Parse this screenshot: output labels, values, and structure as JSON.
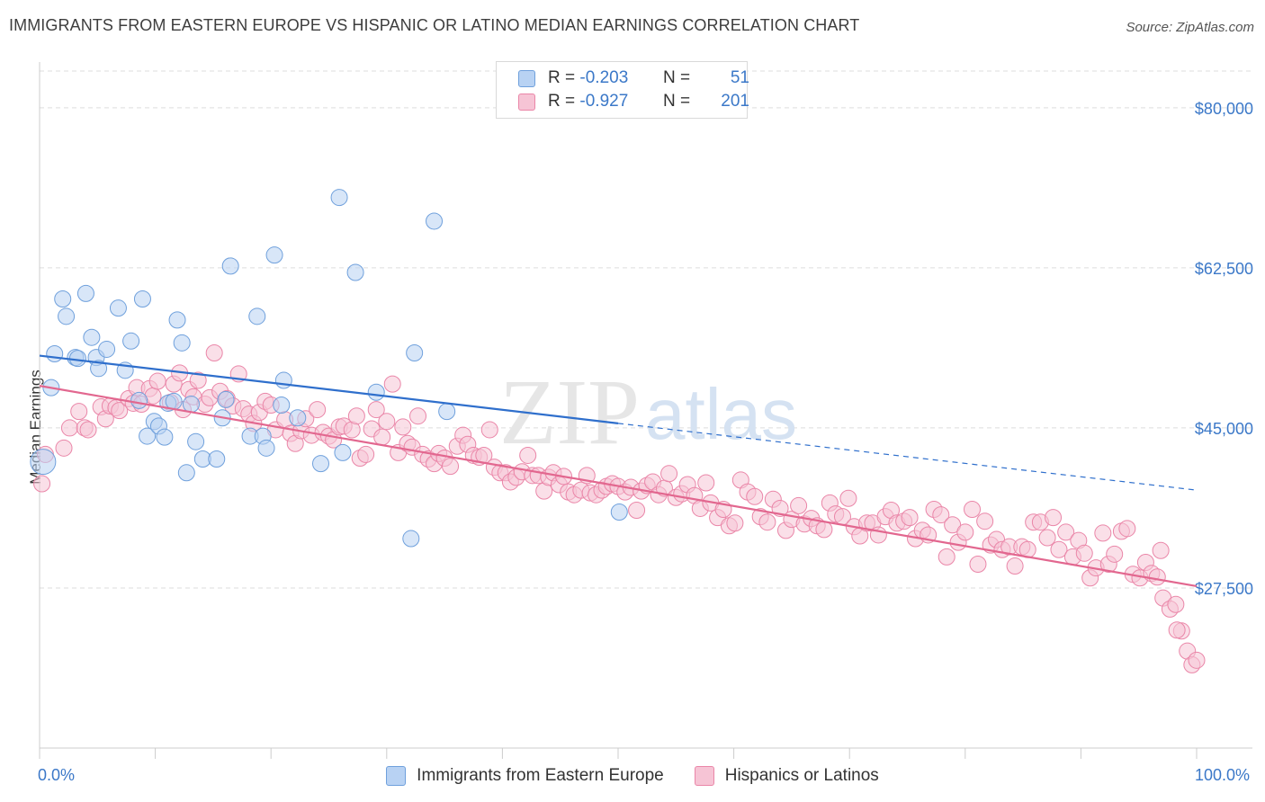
{
  "title": "IMMIGRANTS FROM EASTERN EUROPE VS HISPANIC OR LATINO MEDIAN EARNINGS CORRELATION CHART",
  "source": "Source: ZipAtlas.com",
  "watermark": {
    "zip": "ZIP",
    "atlas": "atlas"
  },
  "legend_top": [
    {
      "r_label": "R =",
      "r_value": "-0.203",
      "n_label": "N =",
      "n_value": "51"
    },
    {
      "r_label": "R =",
      "r_value": "-0.927",
      "n_label": "N =",
      "n_value": "201"
    }
  ],
  "colors": {
    "blue": "#6fa0dc",
    "blue_fill": "#b8d2f3",
    "blue_line": "#2f6fcc",
    "pink": "#ea86a8",
    "pink_fill": "#f6c4d5",
    "pink_line": "#e2678f",
    "axis_text": "#3b78c8",
    "grid": "#dddddd"
  },
  "chart_data": {
    "type": "scatter",
    "title": "IMMIGRANTS FROM EASTERN EUROPE VS HISPANIC OR LATINO MEDIAN EARNINGS CORRELATION CHART",
    "xlabel": "",
    "ylabel": "Median Earnings",
    "xlim": [
      0,
      100
    ],
    "ylim": [
      10000,
      85000
    ],
    "x_tick_labels": [
      "0.0%",
      "100.0%"
    ],
    "y_ticks": [
      80000,
      62500,
      45000,
      27500
    ],
    "y_tick_labels": [
      "$80,000",
      "$62,500",
      "$45,000",
      "$27,500"
    ],
    "series": [
      {
        "name": "Immigrants from Eastern Europe",
        "color": "#6fa0dc",
        "trend": {
          "x0": 0,
          "y0": 52900,
          "x1": 50,
          "y1": 45500,
          "dash_x1": 100,
          "dash_y1": 38200
        },
        "points": [
          [
            0.3,
            41300
          ],
          [
            1,
            49400
          ],
          [
            1.3,
            53100
          ],
          [
            2,
            59100
          ],
          [
            2.3,
            57200
          ],
          [
            3.1,
            52700
          ],
          [
            4,
            59700
          ],
          [
            4.5,
            54900
          ],
          [
            4.9,
            52700
          ],
          [
            5.1,
            51500
          ],
          [
            5.8,
            53600
          ],
          [
            6.8,
            58100
          ],
          [
            7.4,
            51300
          ],
          [
            7.9,
            54500
          ],
          [
            8.6,
            48000
          ],
          [
            8.9,
            59100
          ],
          [
            9.3,
            44100
          ],
          [
            9.9,
            45700
          ],
          [
            10.3,
            45200
          ],
          [
            11.1,
            47700
          ],
          [
            11.6,
            47900
          ],
          [
            11.9,
            56800
          ],
          [
            12.3,
            54300
          ],
          [
            12.7,
            40100
          ],
          [
            13.1,
            47600
          ],
          [
            13.5,
            43500
          ],
          [
            14.1,
            41600
          ],
          [
            15.3,
            41600
          ],
          [
            15.8,
            46100
          ],
          [
            16.1,
            48100
          ],
          [
            16.5,
            62700
          ],
          [
            18.2,
            44100
          ],
          [
            18.8,
            57200
          ],
          [
            19.3,
            44100
          ],
          [
            19.6,
            42800
          ],
          [
            20.3,
            63900
          ],
          [
            20.9,
            47500
          ],
          [
            21.1,
            50200
          ],
          [
            22.3,
            46100
          ],
          [
            24.3,
            41100
          ],
          [
            25.9,
            70200
          ],
          [
            26.2,
            42300
          ],
          [
            27.3,
            62000
          ],
          [
            29.1,
            48900
          ],
          [
            32.1,
            32900
          ],
          [
            32.4,
            53200
          ],
          [
            34.1,
            67600
          ],
          [
            35.2,
            46800
          ],
          [
            50.1,
            35800
          ],
          [
            3.3,
            52600
          ],
          [
            10.8,
            44000
          ]
        ]
      },
      {
        "name": "Hispanics or Latinos",
        "color": "#ea86a8",
        "trend": {
          "x0": 0,
          "y0": 49600,
          "x1": 100,
          "y1": 27700
        },
        "points": [
          [
            0.2,
            38900
          ],
          [
            0.5,
            42100
          ],
          [
            2.1,
            42800
          ],
          [
            2.6,
            45000
          ],
          [
            3.4,
            46800
          ],
          [
            3.9,
            45000
          ],
          [
            4.2,
            44800
          ],
          [
            5.3,
            47300
          ],
          [
            5.7,
            46000
          ],
          [
            6.1,
            47400
          ],
          [
            6.6,
            47200
          ],
          [
            6.9,
            46900
          ],
          [
            7.7,
            48200
          ],
          [
            8.1,
            47700
          ],
          [
            8.4,
            49400
          ],
          [
            8.8,
            47600
          ],
          [
            9.5,
            49300
          ],
          [
            9.8,
            48500
          ],
          [
            10.2,
            50100
          ],
          [
            11.3,
            47800
          ],
          [
            11.6,
            49800
          ],
          [
            12.1,
            51000
          ],
          [
            12.4,
            47000
          ],
          [
            12.9,
            49200
          ],
          [
            13.3,
            48400
          ],
          [
            13.7,
            50200
          ],
          [
            14.3,
            47600
          ],
          [
            14.7,
            48300
          ],
          [
            15.1,
            53200
          ],
          [
            15.6,
            49000
          ],
          [
            16.2,
            48200
          ],
          [
            16.7,
            47400
          ],
          [
            17.2,
            50900
          ],
          [
            17.6,
            47100
          ],
          [
            18.1,
            46500
          ],
          [
            18.5,
            45500
          ],
          [
            19.0,
            46700
          ],
          [
            19.5,
            47900
          ],
          [
            20.0,
            47500
          ],
          [
            20.4,
            44800
          ],
          [
            21.2,
            45900
          ],
          [
            21.7,
            44400
          ],
          [
            22.1,
            43300
          ],
          [
            22.6,
            44700
          ],
          [
            23.0,
            46000
          ],
          [
            23.5,
            44200
          ],
          [
            24.0,
            47000
          ],
          [
            24.5,
            44500
          ],
          [
            25.0,
            44100
          ],
          [
            25.4,
            43700
          ],
          [
            25.9,
            45100
          ],
          [
            26.3,
            45200
          ],
          [
            27.0,
            44800
          ],
          [
            27.4,
            46300
          ],
          [
            27.7,
            41700
          ],
          [
            28.2,
            42100
          ],
          [
            28.7,
            44900
          ],
          [
            29.1,
            47000
          ],
          [
            29.6,
            44000
          ],
          [
            30.0,
            45700
          ],
          [
            30.5,
            49800
          ],
          [
            31.0,
            42300
          ],
          [
            31.4,
            45100
          ],
          [
            31.8,
            43300
          ],
          [
            32.2,
            42900
          ],
          [
            32.7,
            46300
          ],
          [
            33.1,
            42100
          ],
          [
            33.6,
            41600
          ],
          [
            34.1,
            41100
          ],
          [
            34.5,
            42200
          ],
          [
            35.0,
            41700
          ],
          [
            35.5,
            40800
          ],
          [
            36.1,
            43000
          ],
          [
            36.6,
            44200
          ],
          [
            37.0,
            43200
          ],
          [
            37.5,
            42000
          ],
          [
            38.0,
            41800
          ],
          [
            38.4,
            42000
          ],
          [
            38.9,
            44800
          ],
          [
            39.3,
            40700
          ],
          [
            39.8,
            40100
          ],
          [
            40.3,
            40100
          ],
          [
            40.7,
            39100
          ],
          [
            41.2,
            39600
          ],
          [
            41.7,
            40200
          ],
          [
            42.2,
            42000
          ],
          [
            42.6,
            39800
          ],
          [
            43.1,
            39800
          ],
          [
            43.6,
            38100
          ],
          [
            44.0,
            39600
          ],
          [
            44.4,
            40100
          ],
          [
            44.9,
            38800
          ],
          [
            45.3,
            39700
          ],
          [
            45.7,
            38000
          ],
          [
            46.2,
            37700
          ],
          [
            46.8,
            38200
          ],
          [
            47.3,
            39800
          ],
          [
            47.6,
            37900
          ],
          [
            48.1,
            37700
          ],
          [
            48.6,
            38200
          ],
          [
            49.0,
            38600
          ],
          [
            49.5,
            38900
          ],
          [
            50.0,
            38600
          ],
          [
            50.6,
            38000
          ],
          [
            51.1,
            38500
          ],
          [
            51.6,
            36000
          ],
          [
            52.0,
            38100
          ],
          [
            52.5,
            38700
          ],
          [
            53.0,
            39100
          ],
          [
            53.5,
            37700
          ],
          [
            54.0,
            38400
          ],
          [
            54.4,
            40000
          ],
          [
            55.0,
            37400
          ],
          [
            55.5,
            37800
          ],
          [
            56.0,
            38800
          ],
          [
            56.6,
            37600
          ],
          [
            57.1,
            36200
          ],
          [
            57.6,
            39000
          ],
          [
            58.0,
            36800
          ],
          [
            58.6,
            35200
          ],
          [
            59.1,
            36100
          ],
          [
            59.6,
            34300
          ],
          [
            60.1,
            34600
          ],
          [
            60.6,
            39300
          ],
          [
            61.2,
            38000
          ],
          [
            61.8,
            37500
          ],
          [
            62.3,
            35300
          ],
          [
            62.9,
            34700
          ],
          [
            63.4,
            37200
          ],
          [
            64.0,
            36200
          ],
          [
            64.5,
            33800
          ],
          [
            65.0,
            35000
          ],
          [
            65.6,
            36500
          ],
          [
            66.1,
            34500
          ],
          [
            66.7,
            35100
          ],
          [
            67.2,
            34300
          ],
          [
            67.8,
            33900
          ],
          [
            68.3,
            36800
          ],
          [
            68.8,
            35600
          ],
          [
            69.4,
            35300
          ],
          [
            69.9,
            37300
          ],
          [
            70.4,
            34200
          ],
          [
            70.9,
            33200
          ],
          [
            71.5,
            34600
          ],
          [
            72.0,
            34600
          ],
          [
            72.5,
            33300
          ],
          [
            73.1,
            35300
          ],
          [
            73.6,
            36000
          ],
          [
            74.1,
            34600
          ],
          [
            74.7,
            34800
          ],
          [
            75.2,
            35200
          ],
          [
            75.7,
            32900
          ],
          [
            76.3,
            33800
          ],
          [
            76.8,
            33300
          ],
          [
            77.3,
            36100
          ],
          [
            77.9,
            35500
          ],
          [
            78.4,
            30900
          ],
          [
            78.9,
            34400
          ],
          [
            79.4,
            32500
          ],
          [
            80.0,
            33600
          ],
          [
            80.6,
            36100
          ],
          [
            81.1,
            30100
          ],
          [
            81.7,
            34800
          ],
          [
            82.2,
            32200
          ],
          [
            82.7,
            32800
          ],
          [
            83.2,
            31700
          ],
          [
            83.8,
            32000
          ],
          [
            84.3,
            29900
          ],
          [
            84.9,
            32000
          ],
          [
            85.4,
            31700
          ],
          [
            85.9,
            34700
          ],
          [
            86.5,
            34700
          ],
          [
            87.1,
            33000
          ],
          [
            87.6,
            35200
          ],
          [
            88.1,
            31700
          ],
          [
            88.7,
            33600
          ],
          [
            89.3,
            30900
          ],
          [
            89.8,
            32700
          ],
          [
            90.3,
            31300
          ],
          [
            90.8,
            28600
          ],
          [
            91.3,
            29700
          ],
          [
            91.9,
            33500
          ],
          [
            92.4,
            30100
          ],
          [
            92.9,
            31200
          ],
          [
            93.5,
            33700
          ],
          [
            94.0,
            34000
          ],
          [
            94.5,
            29000
          ],
          [
            95.1,
            28600
          ],
          [
            95.6,
            30300
          ],
          [
            96.1,
            29100
          ],
          [
            96.6,
            28700
          ],
          [
            97.1,
            26400
          ],
          [
            97.7,
            25200
          ],
          [
            98.2,
            25700
          ],
          [
            98.7,
            22800
          ],
          [
            99.2,
            20600
          ],
          [
            99.6,
            19100
          ],
          [
            100.0,
            19600
          ],
          [
            96.9,
            31600
          ],
          [
            98.3,
            22900
          ]
        ]
      }
    ]
  },
  "legend_bottom": [
    "Immigrants from Eastern Europe",
    "Hispanics or Latinos"
  ]
}
